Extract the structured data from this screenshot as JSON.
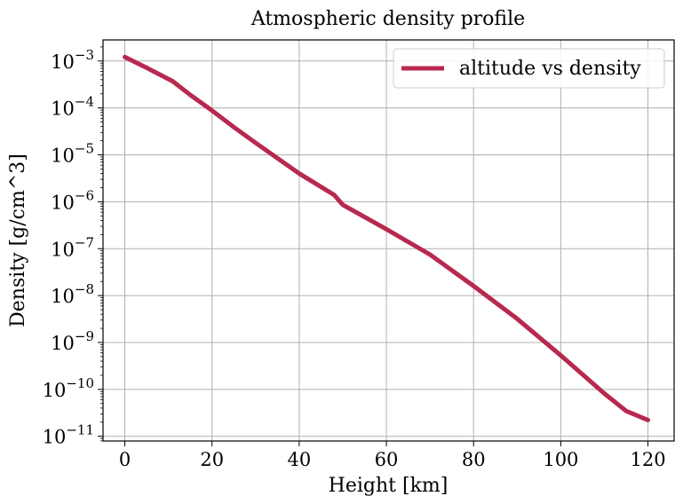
{
  "chart_data": {
    "type": "line",
    "title": "Atmospheric density profile",
    "xlabel": "Height [km]",
    "ylabel": "Density [g/cm^3]",
    "xscale": "linear",
    "yscale": "log",
    "xlim": [
      -5,
      126
    ],
    "ylim_log10": [
      -11.1,
      -2.55
    ],
    "grid": true,
    "legend_position": "top-right",
    "x_ticks": [
      0,
      20,
      40,
      60,
      80,
      100,
      120
    ],
    "x_tick_labels": [
      "0",
      "20",
      "40",
      "60",
      "80",
      "100",
      "120"
    ],
    "y_tick_exponents": [
      -3,
      -4,
      -5,
      -6,
      -7,
      -8,
      -9,
      -10,
      -11
    ],
    "y_tick_base": "10",
    "y_tick_exponent_labels": [
      "−3",
      "−4",
      "−5",
      "−6",
      "−7",
      "−8",
      "−9",
      "−10",
      "−11"
    ],
    "series": [
      {
        "name": "altitude vs density",
        "color": "#b8294f",
        "x": [
          0,
          5,
          11,
          15,
          20,
          25,
          30,
          40,
          48,
          50,
          60,
          70,
          80,
          90,
          95,
          100,
          110,
          115,
          120
        ],
        "y": [
          0.00122,
          0.00072,
          0.00037,
          0.00019,
          8.8e-05,
          3.9e-05,
          1.8e-05,
          4e-06,
          1.4e-06,
          8.6e-07,
          2.6e-07,
          7.5e-08,
          1.6e-08,
          3.2e-09,
          1.3e-09,
          5.3e-10,
          8.17e-11,
          3.46e-11,
          2.22e-11
        ]
      }
    ]
  }
}
